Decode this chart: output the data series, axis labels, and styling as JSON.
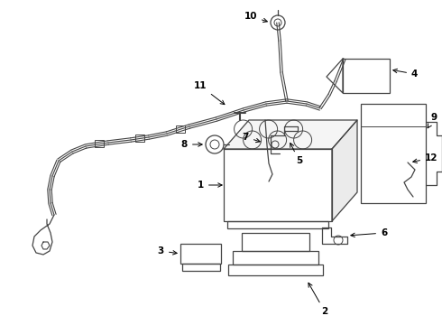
{
  "background_color": "#ffffff",
  "line_color": "#444444",
  "lw": 0.9
}
